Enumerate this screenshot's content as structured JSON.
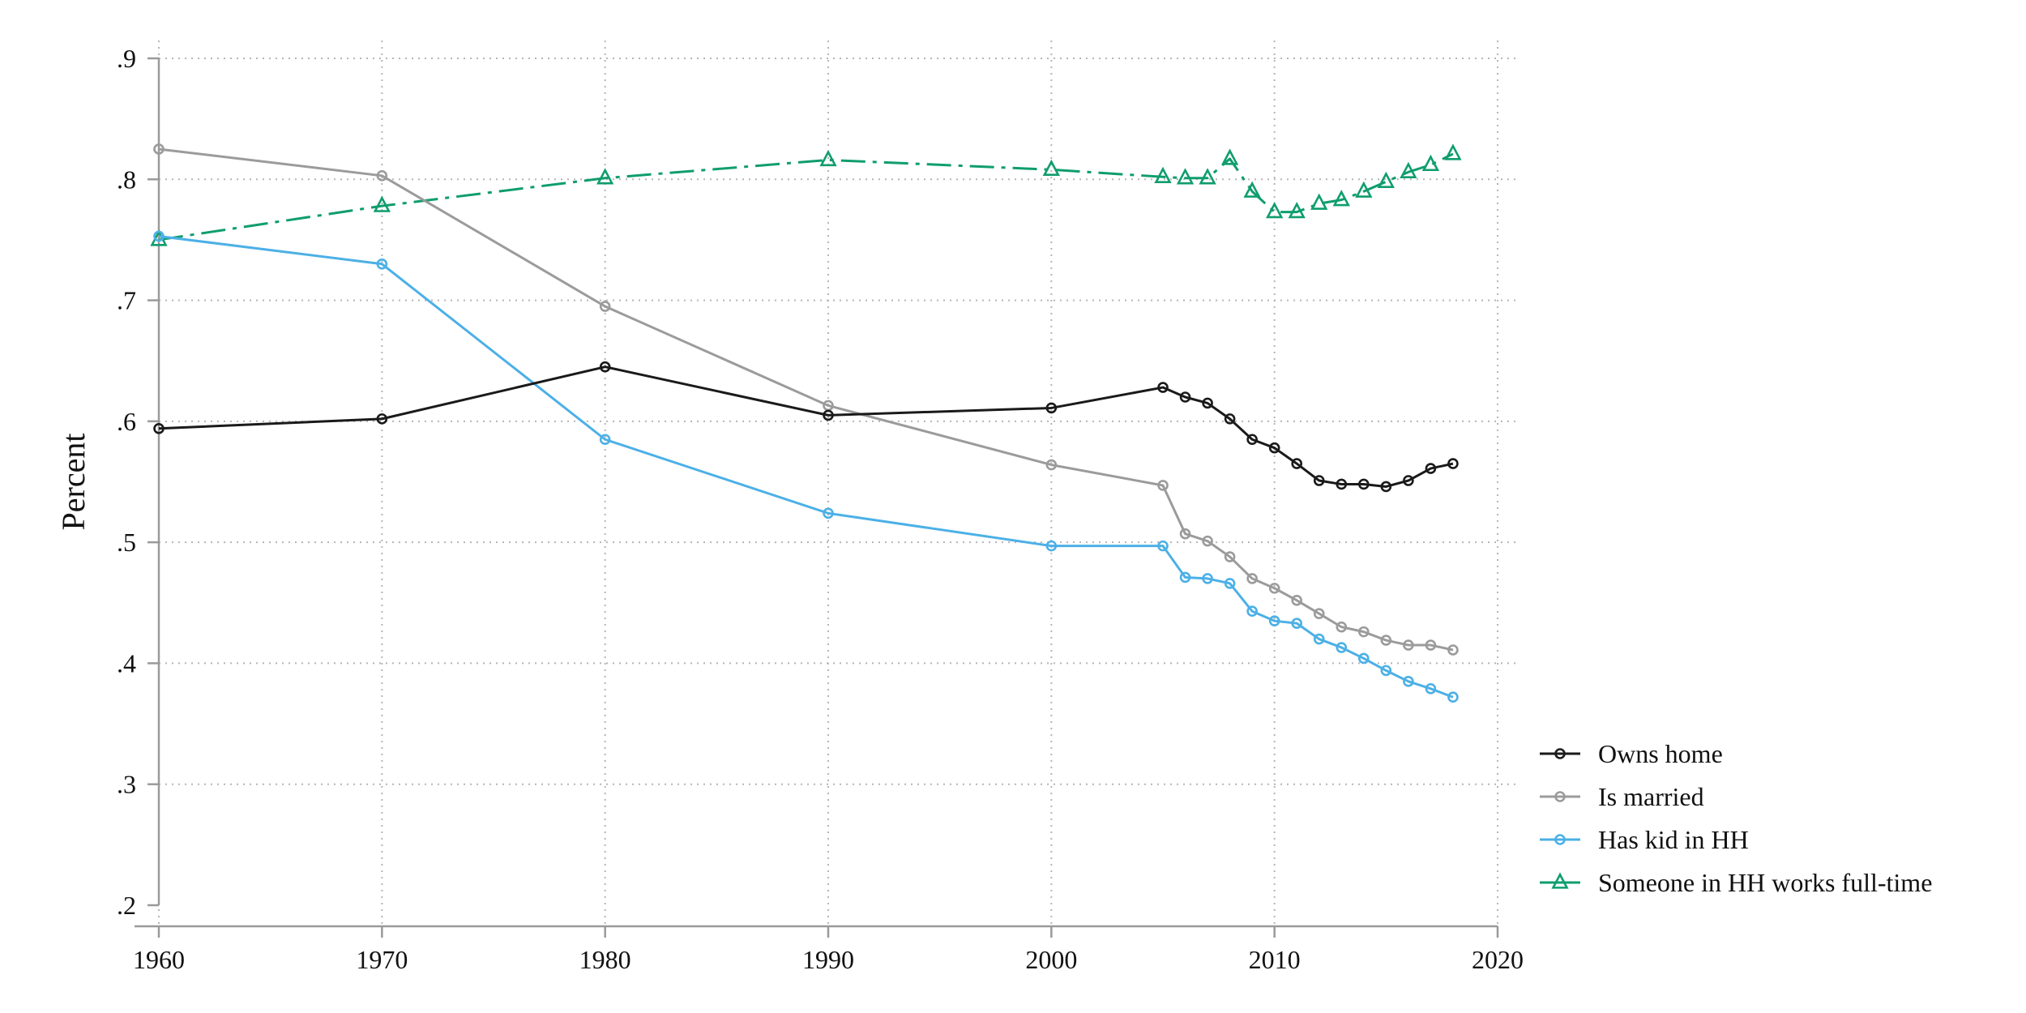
{
  "chart_data": {
    "type": "line",
    "title": "",
    "xlabel": "",
    "ylabel": "Percent",
    "xlim": [
      1960,
      2020
    ],
    "ylim": [
      0.2,
      0.9
    ],
    "x_ticks": [
      1960,
      1970,
      1980,
      1990,
      2000,
      2010,
      2020
    ],
    "x_tick_labels": [
      "1960",
      "1970",
      "1980",
      "1990",
      "2000",
      "2010",
      "2020"
    ],
    "y_ticks": [
      0.2,
      0.3,
      0.4,
      0.5,
      0.6,
      0.7,
      0.8,
      0.9
    ],
    "y_tick_labels": [
      ".2",
      ".3",
      ".4",
      ".5",
      ".6",
      ".7",
      ".8",
      ".9"
    ],
    "grid": "dotted",
    "legend_position": "right",
    "series": [
      {
        "name": "Owns home",
        "color": "#1a1a1a",
        "marker": "circle",
        "dash": "solid",
        "points": [
          [
            1960,
            0.594
          ],
          [
            1970,
            0.602
          ],
          [
            1980,
            0.645
          ],
          [
            1990,
            0.605
          ],
          [
            2000,
            0.611
          ],
          [
            2005,
            0.628
          ],
          [
            2006,
            0.62
          ],
          [
            2007,
            0.615
          ],
          [
            2008,
            0.602
          ],
          [
            2009,
            0.585
          ],
          [
            2010,
            0.578
          ],
          [
            2011,
            0.565
          ],
          [
            2012,
            0.551
          ],
          [
            2013,
            0.548
          ],
          [
            2014,
            0.548
          ],
          [
            2015,
            0.546
          ],
          [
            2016,
            0.551
          ],
          [
            2017,
            0.561
          ],
          [
            2018,
            0.565
          ]
        ]
      },
      {
        "name": "Is married",
        "color": "#9b9b9b",
        "marker": "circle",
        "dash": "solid",
        "points": [
          [
            1960,
            0.825
          ],
          [
            1970,
            0.803
          ],
          [
            1980,
            0.695
          ],
          [
            1990,
            0.613
          ],
          [
            2000,
            0.564
          ],
          [
            2005,
            0.547
          ],
          [
            2006,
            0.507
          ],
          [
            2007,
            0.501
          ],
          [
            2008,
            0.488
          ],
          [
            2009,
            0.47
          ],
          [
            2010,
            0.462
          ],
          [
            2011,
            0.452
          ],
          [
            2012,
            0.441
          ],
          [
            2013,
            0.43
          ],
          [
            2014,
            0.426
          ],
          [
            2015,
            0.419
          ],
          [
            2016,
            0.415
          ],
          [
            2017,
            0.415
          ],
          [
            2018,
            0.411
          ]
        ]
      },
      {
        "name": "Has kid in HH",
        "color": "#4cb0e6",
        "marker": "circle",
        "dash": "solid",
        "points": [
          [
            1960,
            0.753
          ],
          [
            1970,
            0.73
          ],
          [
            1980,
            0.585
          ],
          [
            1990,
            0.524
          ],
          [
            2000,
            0.497
          ],
          [
            2005,
            0.497
          ],
          [
            2006,
            0.471
          ],
          [
            2007,
            0.47
          ],
          [
            2008,
            0.466
          ],
          [
            2009,
            0.443
          ],
          [
            2010,
            0.435
          ],
          [
            2011,
            0.433
          ],
          [
            2012,
            0.42
          ],
          [
            2013,
            0.413
          ],
          [
            2014,
            0.404
          ],
          [
            2015,
            0.394
          ],
          [
            2016,
            0.385
          ],
          [
            2017,
            0.379
          ],
          [
            2018,
            0.372
          ]
        ]
      },
      {
        "name": "Someone in HH works full-time",
        "color": "#0f9d6e",
        "marker": "triangle",
        "dash": "dashdot",
        "points": [
          [
            1960,
            0.75
          ],
          [
            1970,
            0.778
          ],
          [
            1980,
            0.801
          ],
          [
            1990,
            0.816
          ],
          [
            2000,
            0.808
          ],
          [
            2005,
            0.802
          ],
          [
            2006,
            0.801
          ],
          [
            2007,
            0.801
          ],
          [
            2008,
            0.817
          ],
          [
            2009,
            0.79
          ],
          [
            2010,
            0.773
          ],
          [
            2011,
            0.773
          ],
          [
            2012,
            0.78
          ],
          [
            2013,
            0.783
          ],
          [
            2014,
            0.79
          ],
          [
            2015,
            0.798
          ],
          [
            2016,
            0.806
          ],
          [
            2017,
            0.812
          ],
          [
            2018,
            0.821
          ]
        ]
      }
    ]
  }
}
